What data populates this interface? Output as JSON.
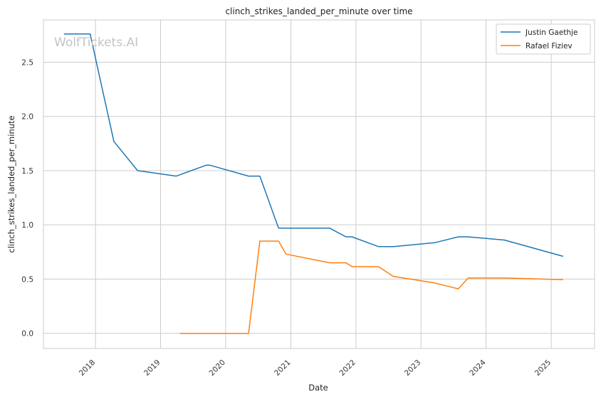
{
  "chart_data": {
    "type": "line",
    "title": "clinch_strikes_landed_per_minute over time",
    "xlabel": "Date",
    "ylabel": "clinch_strikes_landed_per_minute",
    "watermark": "WolfTickets.AI",
    "xlim": [
      "2017-03-15",
      "2025-09-01"
    ],
    "ylim": [
      -0.14,
      2.89
    ],
    "x_ticks": [
      "2018",
      "2019",
      "2020",
      "2021",
      "2022",
      "2023",
      "2024",
      "2025"
    ],
    "y_ticks": [
      "0.0",
      "0.5",
      "1.0",
      "1.5",
      "2.0",
      "2.5"
    ],
    "grid": true,
    "legend_position": "top-right",
    "series": [
      {
        "name": "Justin Gaethje",
        "color": "#1f77b4",
        "points": [
          [
            "2017-07-08",
            2.76
          ],
          [
            "2017-12-02",
            2.76
          ],
          [
            "2018-04-14",
            1.77
          ],
          [
            "2018-08-25",
            1.5
          ],
          [
            "2019-03-30",
            1.45
          ],
          [
            "2019-09-14",
            1.55
          ],
          [
            "2019-10-05",
            1.55
          ],
          [
            "2020-05-09",
            1.45
          ],
          [
            "2020-07-11",
            1.45
          ],
          [
            "2020-10-24",
            0.97
          ],
          [
            "2021-08-07",
            0.97
          ],
          [
            "2021-11-06",
            0.89
          ],
          [
            "2021-12-10",
            0.89
          ],
          [
            "2022-05-07",
            0.8
          ],
          [
            "2022-07-30",
            0.8
          ],
          [
            "2023-03-18",
            0.835
          ],
          [
            "2023-07-29",
            0.89
          ],
          [
            "2023-09-23",
            0.89
          ],
          [
            "2024-04-13",
            0.86
          ],
          [
            "2025-03-08",
            0.71
          ]
        ]
      },
      {
        "name": "Rafael Fiziev",
        "color": "#ff7f0e",
        "points": [
          [
            "2019-04-20",
            0.0
          ],
          [
            "2020-05-09",
            0.0
          ],
          [
            "2020-07-11",
            0.85
          ],
          [
            "2020-10-24",
            0.85
          ],
          [
            "2020-12-05",
            0.73
          ],
          [
            "2021-08-07",
            0.65
          ],
          [
            "2021-11-06",
            0.65
          ],
          [
            "2021-12-10",
            0.615
          ],
          [
            "2022-05-07",
            0.615
          ],
          [
            "2022-07-30",
            0.525
          ],
          [
            "2023-03-18",
            0.465
          ],
          [
            "2023-07-29",
            0.41
          ],
          [
            "2023-09-23",
            0.51
          ],
          [
            "2024-04-13",
            0.51
          ],
          [
            "2025-03-08",
            0.495
          ]
        ]
      }
    ]
  }
}
